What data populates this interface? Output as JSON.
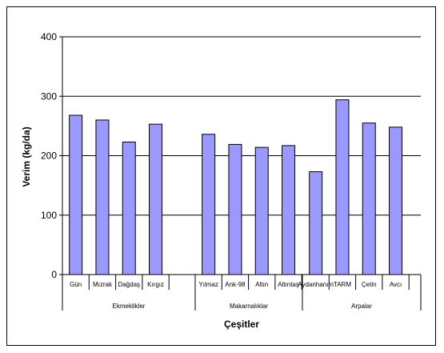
{
  "chart_data": {
    "type": "bar",
    "ylabel": "Verim (kg/da)",
    "xlabel": "Çeşitler",
    "ylim": [
      0,
      400
    ],
    "yticks": [
      0,
      100,
      200,
      300,
      400
    ],
    "grid": true,
    "bar_color": "#9999ff",
    "groups": [
      {
        "name": "Ekmeklikler",
        "categories": [
          "Gün",
          "Mızrak",
          "Dağdaş",
          "Kırgız"
        ],
        "values": [
          268,
          260,
          223,
          253
        ]
      },
      {
        "name": "Makarnalıklar",
        "categories": [
          "Yılmaz",
          "Ank-98",
          "Altın",
          "Altıntaş"
        ],
        "values": [
          236,
          219,
          214,
          217
        ]
      },
      {
        "name": "Arpalar",
        "categories": [
          "Aydanhanım",
          "TARM",
          "Çetin",
          "Avcı"
        ],
        "values": [
          173,
          294,
          255,
          248
        ]
      }
    ]
  }
}
